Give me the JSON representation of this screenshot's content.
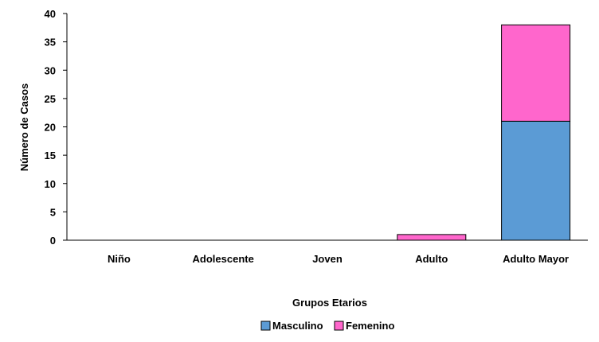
{
  "chart_data": {
    "type": "bar",
    "stacked": true,
    "title": "",
    "xlabel": "Grupos Etarios",
    "ylabel": "Número de Casos",
    "categories": [
      "Niño",
      "Adolescente",
      "Joven",
      "Adulto",
      "Adulto Mayor"
    ],
    "series": [
      {
        "name": "Masculino",
        "values": [
          0,
          0,
          0,
          0,
          21
        ],
        "color": "#5B9BD5"
      },
      {
        "name": "Femenino",
        "values": [
          0,
          0,
          0,
          1,
          17
        ],
        "color": "#FF66CC"
      }
    ],
    "ylim": [
      0,
      40
    ],
    "yticks": [
      0,
      5,
      10,
      15,
      20,
      25,
      30,
      35,
      40
    ],
    "grid": false,
    "legend_position": "bottom"
  }
}
